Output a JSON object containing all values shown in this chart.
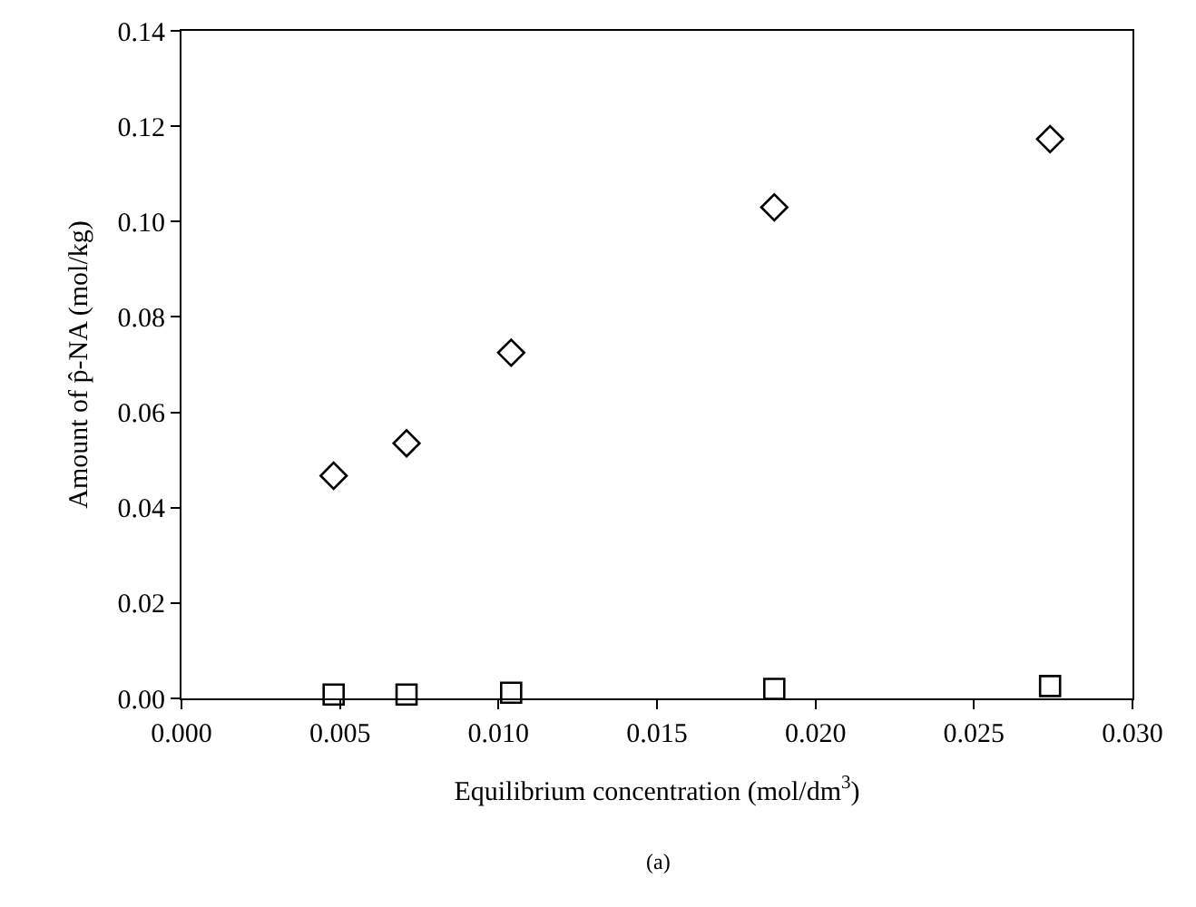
{
  "chart_data": {
    "type": "scatter",
    "xlabel": "Equilibrium concentration (mol/dm$^{3}$)",
    "ylabel": "Amount of p̂-NA (mol/kg)",
    "annotations": [
      "(a)"
    ],
    "x": [
      0.0048,
      0.0071,
      0.0104,
      0.0187,
      0.0274
    ],
    "series": [
      {
        "color": "#000000",
        "marker": "diamond",
        "values": [
          0.0467,
          0.0535,
          0.0725,
          0.103,
          0.1173
        ]
      },
      {
        "color": "#000000",
        "marker": "square",
        "values": [
          0.0008,
          0.0008,
          0.0012,
          0.002,
          0.0026
        ]
      }
    ],
    "xlim": [
      0,
      0.03
    ],
    "xticks": [
      {
        "value": 0,
        "label": "0.000"
      },
      {
        "value": 0.005,
        "label": "0.005"
      },
      {
        "value": 0.01,
        "label": "0.010"
      },
      {
        "value": 0.015,
        "label": "0.015"
      },
      {
        "value": 0.02,
        "label": "0.020"
      },
      {
        "value": 0.025,
        "label": "0.025"
      },
      {
        "value": 0.03,
        "label": "0.030"
      }
    ],
    "ylim": [
      0,
      0.14
    ],
    "yticks": [
      {
        "value": 0,
        "label": "0.00"
      },
      {
        "value": 0.02,
        "label": "0.02"
      },
      {
        "value": 0.04,
        "label": "0.04"
      },
      {
        "value": 0.06,
        "label": "0.06"
      },
      {
        "value": 0.08,
        "label": "0.08"
      },
      {
        "value": 0.1,
        "label": "0.10"
      },
      {
        "value": 0.12,
        "label": "0.12"
      },
      {
        "value": 0.14,
        "label": "0.14"
      }
    ],
    "tick_labels": "xy"
  }
}
